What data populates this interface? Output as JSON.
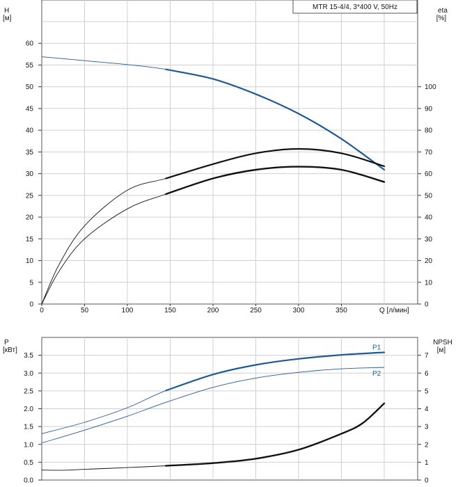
{
  "chart_data": [
    {
      "type": "line",
      "title": "MTR 15-4/4, 3*400 V, 50Hz",
      "x_unit_label": "Q [л/мин]",
      "x_ticks": [
        "0",
        "50",
        "100",
        "150",
        "200",
        "250",
        "300",
        "350"
      ],
      "xlim": [
        0,
        400
      ],
      "y_left_label": "H",
      "y_left_unit": "[м]",
      "y_left_ticks": [
        "0",
        "5",
        "10",
        "15",
        "20",
        "25",
        "30",
        "35",
        "40",
        "45",
        "50",
        "55",
        "60"
      ],
      "ylim_left": [
        0,
        65
      ],
      "y_right_label": "eta",
      "y_right_unit": "[%]",
      "y_right_ticks": [
        "0",
        "10",
        "20",
        "30",
        "40",
        "50",
        "60",
        "70",
        "80",
        "90",
        "100"
      ],
      "ylim_right": [
        0,
        130
      ],
      "grid": true,
      "series": [
        {
          "key": "H",
          "axis": "left",
          "color": "#1f5a96",
          "x": [
            0,
            50,
            100,
            145,
            200,
            250,
            300,
            350,
            400
          ],
          "y": [
            56.9,
            56.0,
            55.1,
            54.0,
            51.8,
            48.3,
            43.8,
            38.0,
            30.9
          ],
          "bold_from": 145
        },
        {
          "key": "eta-total",
          "axis": "right",
          "color": "#111111",
          "x": [
            0,
            20,
            50,
            100,
            145,
            200,
            250,
            300,
            350,
            400
          ],
          "y": [
            0,
            18,
            36,
            52.4,
            57.8,
            64.4,
            69.4,
            71.4,
            69.4,
            63.4
          ],
          "bold_from": 145
        },
        {
          "key": "eta-pump",
          "axis": "right",
          "color": "#111111",
          "x": [
            0,
            20,
            50,
            100,
            145,
            200,
            250,
            300,
            350,
            400
          ],
          "y": [
            0,
            15,
            30,
            43.8,
            50.6,
            57.8,
            61.8,
            63.2,
            61.8,
            56.2
          ],
          "bold_from": 145,
          "bold_width": 2.4
        }
      ]
    },
    {
      "type": "line",
      "y_left_label": "P",
      "y_left_unit": "[кВт]",
      "y_left_ticks": [
        "0.0",
        "0.5",
        "1.0",
        "1.5",
        "2.0",
        "2.5",
        "3.0",
        "3.5"
      ],
      "ylim_left": [
        0,
        4
      ],
      "y_right_label": "NPSH",
      "y_right_unit": "[м]",
      "y_right_ticks": [
        "0",
        "1",
        "2",
        "3",
        "4",
        "5",
        "6",
        "7"
      ],
      "ylim_right": [
        0,
        8
      ],
      "xlim": [
        0,
        400
      ],
      "grid": true,
      "series": [
        {
          "name": "P1",
          "axis": "left",
          "color": "#1f5a96",
          "x": [
            0,
            50,
            100,
            145,
            200,
            250,
            300,
            350,
            400
          ],
          "y": [
            1.3,
            1.62,
            2.03,
            2.51,
            2.96,
            3.23,
            3.4,
            3.51,
            3.58
          ],
          "bold_from": 145
        },
        {
          "name": "P2",
          "axis": "left",
          "color": "#1f5a96",
          "x": [
            0,
            50,
            100,
            145,
            200,
            250,
            300,
            350,
            400
          ],
          "y": [
            1.04,
            1.4,
            1.79,
            2.18,
            2.6,
            2.86,
            3.02,
            3.12,
            3.16
          ],
          "bold_from": 999
        },
        {
          "key": "NPSH",
          "axis": "right",
          "color": "#111111",
          "x": [
            0,
            25,
            50,
            100,
            145,
            200,
            250,
            300,
            350,
            375,
            400
          ],
          "y": [
            0.56,
            0.55,
            0.6,
            0.7,
            0.8,
            0.95,
            1.2,
            1.7,
            2.6,
            3.2,
            4.3
          ],
          "bold_from": 145,
          "bold_width": 2.4
        }
      ]
    }
  ]
}
